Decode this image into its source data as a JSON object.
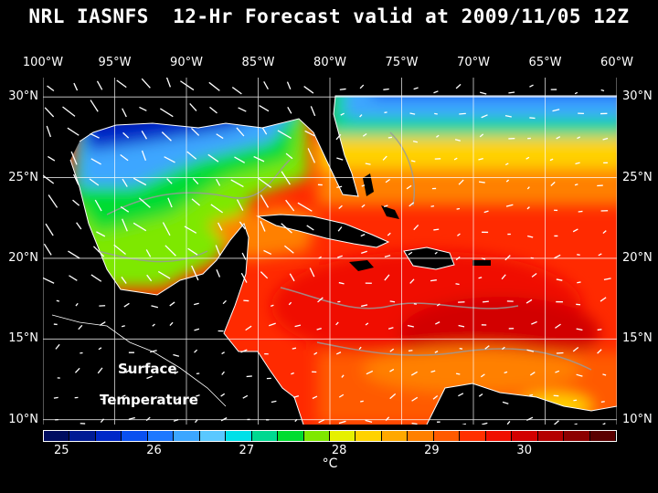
{
  "title": "NRL IASNFS  12-Hr Forecast valid at 2009/11/05 12Z",
  "map": {
    "lon_labels": [
      "100°W",
      "95°W",
      "90°W",
      "85°W",
      "80°W",
      "75°W",
      "70°W",
      "65°W",
      "60°W"
    ],
    "lon_values": [
      -100,
      -95,
      -90,
      -85,
      -80,
      -75,
      -70,
      -65,
      -60
    ],
    "lat_labels": [
      "30°N",
      "25°N",
      "20°N",
      "15°N",
      "10°N"
    ],
    "lat_values": [
      30,
      25,
      20,
      15,
      10
    ],
    "lon_range": [
      -100,
      -60
    ],
    "lat_range": [
      9.7,
      31.2
    ],
    "overlay_line1": "Surface",
    "overlay_line2": "Temperature",
    "field": "sea surface temperature",
    "vectors": "surface current arrows"
  },
  "colorbar": {
    "colors": [
      "#000d60",
      "#001a94",
      "#0028c8",
      "#0a50f0",
      "#1e78ff",
      "#3ca6ff",
      "#5ac8ff",
      "#00e0e8",
      "#00d890",
      "#00dc30",
      "#7ee800",
      "#e6f000",
      "#ffd200",
      "#ffa800",
      "#ff8000",
      "#ff5a00",
      "#ff3000",
      "#f01000",
      "#d20000",
      "#b40000",
      "#8c0000",
      "#5a0000"
    ],
    "tick_labels": [
      "25",
      "26",
      "27",
      "28",
      "29",
      "30"
    ],
    "tick_values": [
      25,
      26,
      27,
      28,
      29,
      30
    ],
    "range": [
      24.8,
      31.0
    ],
    "unit": "°C"
  }
}
